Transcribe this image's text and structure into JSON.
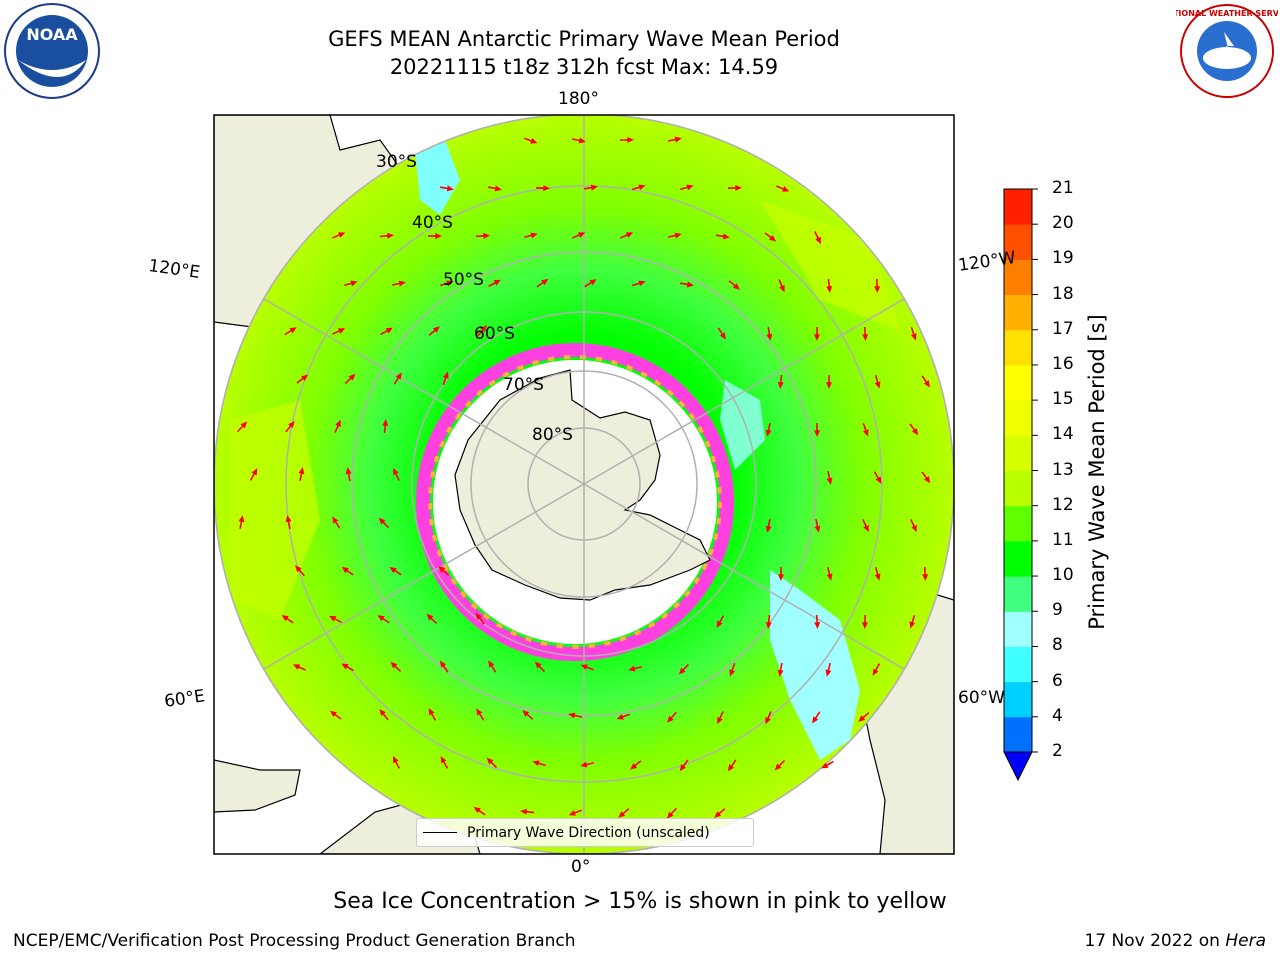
{
  "header": {
    "title_line1": "GEFS MEAN Antarctic Primary Wave Mean Period",
    "title_line2": "20221115 t18z 312h fcst   Max: 14.59"
  },
  "logos": {
    "left": {
      "name": "noaa-logo",
      "text": "NOAA"
    },
    "right": {
      "name": "nws-logo",
      "text": "NATIONAL WEATHER SERVICE"
    }
  },
  "map": {
    "projection": "south-polar-stereographic",
    "longitude_labels": {
      "top": "180°",
      "bottom": "0°",
      "upper_left": "120°E",
      "upper_right": "120°W",
      "lower_left": "60°E",
      "lower_right": "60°W"
    },
    "latitude_labels": [
      "30°S",
      "40°S",
      "50°S",
      "60°S",
      "70°S",
      "80°S"
    ],
    "land_color": "#eeeedd",
    "grid_color": "#b0b0b0",
    "vector_color": "#ff0000",
    "legend_label": "Primary Wave Direction (unscaled)"
  },
  "colorbar": {
    "label": "Primary Wave Mean Period [s]",
    "ticks": [
      "2",
      "4",
      "6",
      "8",
      "9",
      "10",
      "11",
      "12",
      "13",
      "14",
      "15",
      "16",
      "17",
      "18",
      "19",
      "20",
      "21"
    ],
    "colors": [
      "#0070ff",
      "#00d0ff",
      "#40ffff",
      "#a0ffff",
      "#40ff80",
      "#00ff00",
      "#60ff00",
      "#b8ff00",
      "#d8ff00",
      "#f0ff00",
      "#ffff00",
      "#ffe000",
      "#ffb000",
      "#ff8000",
      "#ff5000",
      "#ff2000"
    ],
    "under_color": "#0000ff",
    "over_color": "#ff0000"
  },
  "footer": {
    "sea_ice_note": "Sea Ice Concentration > 15% is shown in pink to yellow",
    "credit": "NCEP/EMC/Verification Post Processing Product Generation Branch",
    "date": "17 Nov 2022 on",
    "host": "Hera"
  }
}
